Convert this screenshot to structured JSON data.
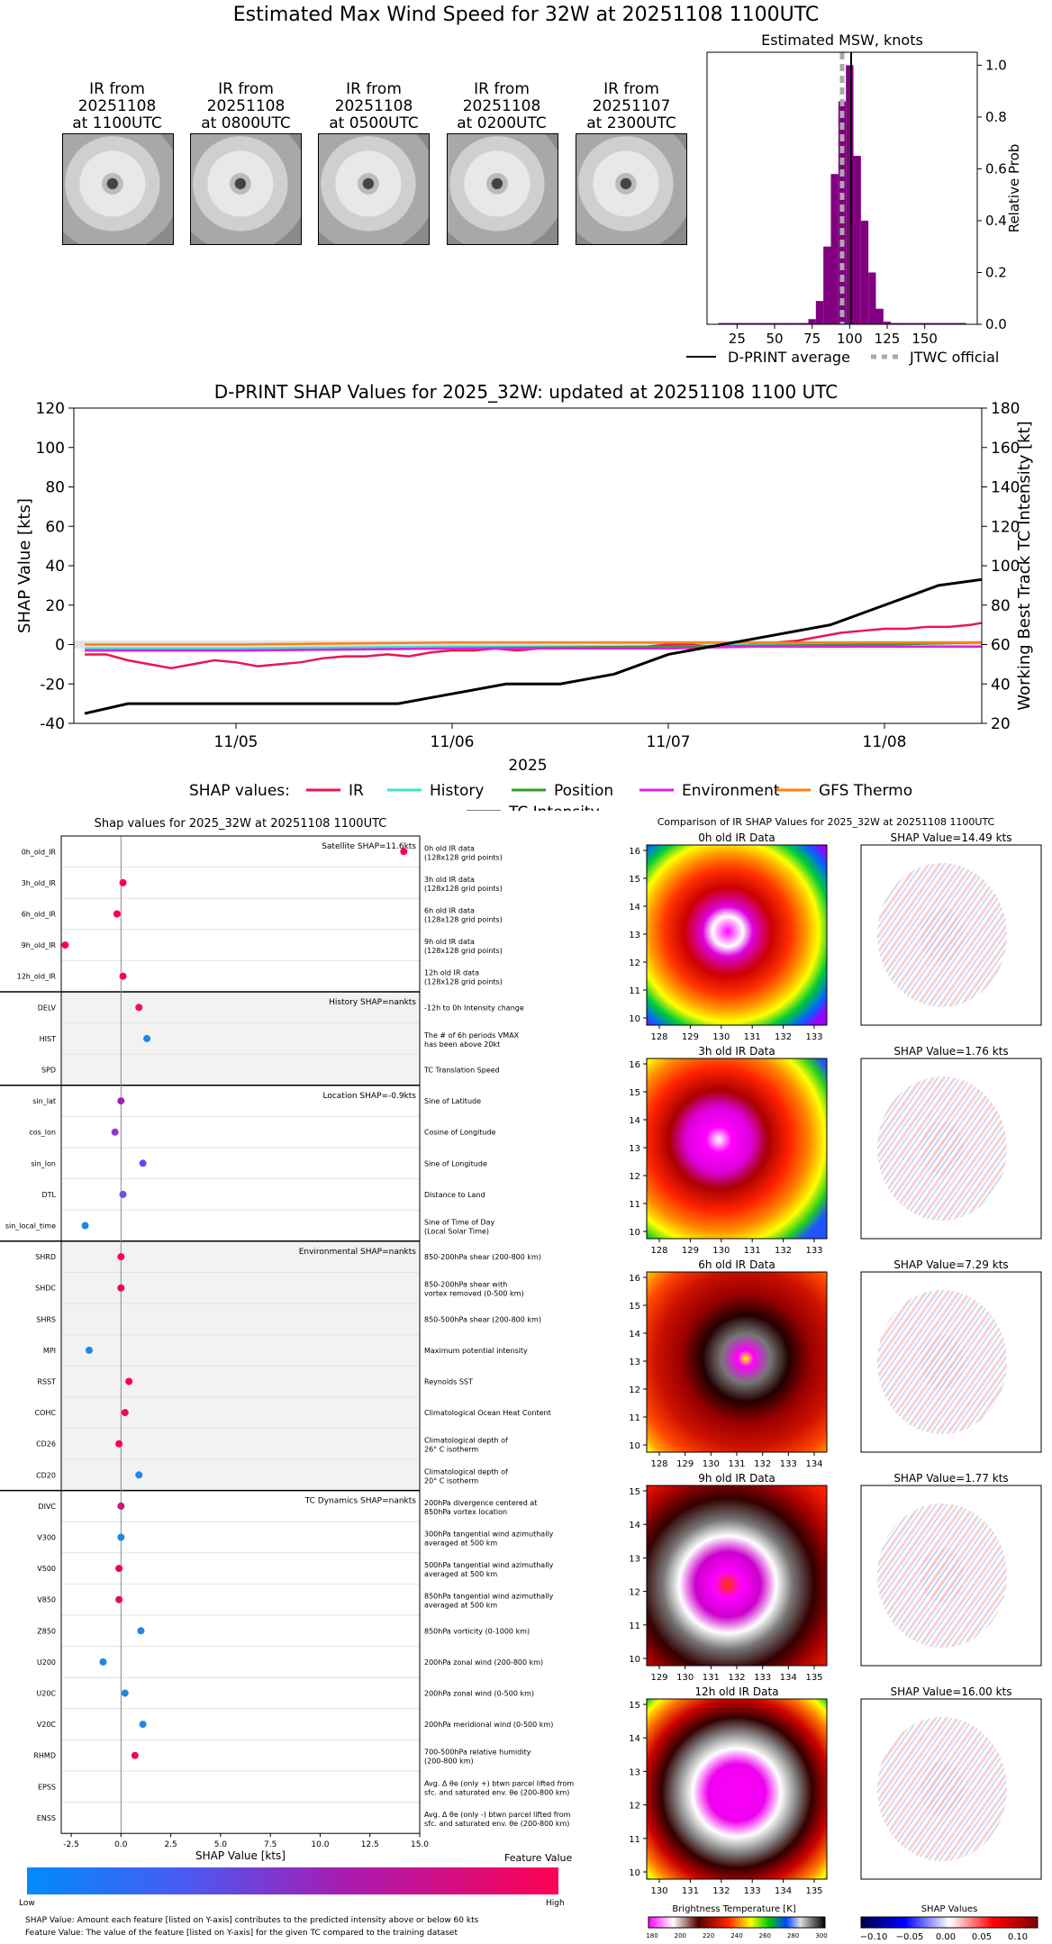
{
  "top": {
    "title": "Estimated Max Wind Speed for 32W at 20251108 1100UTC",
    "thumbnails": [
      {
        "line1": "IR from",
        "line2": "20251108",
        "line3": "at 1100UTC"
      },
      {
        "line1": "IR from",
        "line2": "20251108",
        "line3": "at 0800UTC"
      },
      {
        "line1": "IR from",
        "line2": "20251108",
        "line3": "at 0500UTC"
      },
      {
        "line1": "IR from",
        "line2": "20251108",
        "line3": "at 0200UTC"
      },
      {
        "line1": "IR from",
        "line2": "20251107",
        "line3": "at 2300UTC"
      }
    ],
    "legend_avg": "D-PRINT average",
    "legend_jtwc": "JTWC official",
    "colors": {
      "hist": "#800080",
      "avg": "#000000",
      "jtwc": "#aaaaaa"
    }
  },
  "shap_ts": {
    "title": "D-PRINT SHAP Values for 2025_32W: updated at 20251108 1100 UTC",
    "legend_title": "SHAP values:",
    "legend_items": [
      {
        "label": "IR",
        "color": "#e8174d"
      },
      {
        "label": "History",
        "color": "#40e0d0"
      },
      {
        "label": "Position",
        "color": "#2ca02c"
      },
      {
        "label": "Environment",
        "color": "#e020e0"
      },
      {
        "label": "GFS Thermo",
        "color": "#ff7f0e"
      },
      {
        "label": "TC Intensity",
        "color": "#000000"
      }
    ]
  },
  "features": {
    "title": "Shap values for 2025_32W at 20251108 1100UTC",
    "group_labels": [
      "Satellite SHAP=11.6kts",
      "History SHAP=nankts",
      "Location SHAP=-0.9kts",
      "Environmental SHAP=nankts",
      "TC Dynamics SHAP=nankts"
    ],
    "colorbar_title": "Feature Value",
    "colorbar_low": "Low",
    "colorbar_high": "High",
    "footnote1": "SHAP Value: Amount each feature [listed on Y-axis] contributes to the predicted intensity above or below 60 kts",
    "footnote2": "Feature Value: The value of the feature [listed on Y-axis] for the given TC compared to the training dataset"
  },
  "ir_compare": {
    "title": "Comparison of IR SHAP Values for 2025_32W at 20251108 1100UTC",
    "rows": [
      {
        "ir_title": "0h old IR Data",
        "shap_title": "SHAP Value=14.49 kts",
        "xticks": [
          "128",
          "129",
          "130",
          "131",
          "132",
          "133"
        ],
        "yticks": [
          "16",
          "15",
          "14",
          "13",
          "12",
          "11",
          "10"
        ]
      },
      {
        "ir_title": "3h old IR Data",
        "shap_title": "SHAP Value=1.76 kts",
        "xticks": [
          "128",
          "129",
          "130",
          "131",
          "132",
          "133"
        ],
        "yticks": [
          "16",
          "15",
          "14",
          "13",
          "12",
          "11",
          "10"
        ]
      },
      {
        "ir_title": "6h old IR Data",
        "shap_title": "SHAP Value=7.29 kts",
        "xticks": [
          "128",
          "129",
          "130",
          "131",
          "132",
          "133",
          "134"
        ],
        "yticks": [
          "16",
          "15",
          "14",
          "13",
          "12",
          "11",
          "10"
        ]
      },
      {
        "ir_title": "9h old IR Data",
        "shap_title": "SHAP Value=1.77 kts",
        "xticks": [
          "129",
          "130",
          "131",
          "132",
          "133",
          "134",
          "135"
        ],
        "yticks": [
          "15",
          "14",
          "13",
          "12",
          "11",
          "10"
        ]
      },
      {
        "ir_title": "12h old IR Data",
        "shap_title": "SHAP Value=16.00 kts",
        "xticks": [
          "130",
          "131",
          "132",
          "133",
          "134",
          "135"
        ],
        "yticks": [
          "15",
          "14",
          "13",
          "12",
          "11",
          "10"
        ]
      }
    ],
    "bt_title": "Brightness Temperature [K]",
    "bt_ticks": [
      "180",
      "200",
      "220",
      "240",
      "260",
      "280",
      "300"
    ],
    "sv_title": "SHAP Values",
    "sv_ticks": [
      "−0.10",
      "−0.05",
      "0.00",
      "0.05",
      "0.10"
    ]
  },
  "chart_data": [
    {
      "type": "bar",
      "title": "Estimated MSW, knots",
      "ylabel": "Relative Prob",
      "xlim": [
        5,
        185
      ],
      "ylim": [
        0,
        1.05
      ],
      "xticks": [
        25,
        50,
        75,
        100,
        125,
        150
      ],
      "yticks": [
        0.0,
        0.2,
        0.4,
        0.6,
        0.8,
        1.0
      ],
      "bin_width": 5,
      "bins": [
        15,
        20,
        25,
        30,
        35,
        40,
        45,
        50,
        55,
        60,
        65,
        70,
        75,
        80,
        85,
        90,
        95,
        100,
        105,
        110,
        115,
        120,
        125,
        130,
        135,
        140,
        145,
        150,
        155,
        160,
        165,
        170,
        175
      ],
      "values": [
        0.005,
        0.005,
        0.005,
        0.005,
        0.005,
        0.005,
        0.005,
        0.005,
        0.005,
        0.005,
        0.005,
        0.005,
        0.02,
        0.09,
        0.3,
        0.58,
        0.86,
        1.0,
        0.65,
        0.4,
        0.2,
        0.06,
        0.01,
        0.005,
        0.005,
        0.005,
        0.005,
        0.005,
        0.005,
        0.005,
        0.005,
        0.005,
        0.005
      ],
      "dprint_average": 101,
      "jtwc_official": 95
    },
    {
      "type": "line",
      "title": "D-PRINT SHAP Values for 2025_32W: updated at 20251108 1100 UTC",
      "xlabel": "2025",
      "ylabel": "SHAP Value [kts]",
      "y2label": "Working Best Track TC Intensity [kt]",
      "xlim": [
        4.25,
        8.45
      ],
      "ylim": [
        -40,
        120
      ],
      "y2lim": [
        20,
        180
      ],
      "xticks": [
        {
          "v": 5,
          "label": "11/05"
        },
        {
          "v": 6,
          "label": "11/06"
        },
        {
          "v": 7,
          "label": "11/07"
        },
        {
          "v": 8,
          "label": "11/08"
        }
      ],
      "yticks": [
        -40,
        -20,
        0,
        20,
        40,
        60,
        80,
        100,
        120
      ],
      "y2ticks": [
        20,
        40,
        60,
        80,
        100,
        120,
        140,
        160,
        180
      ],
      "series": [
        {
          "name": "IR",
          "axis": "left",
          "x": [
            4.3,
            4.4,
            4.5,
            4.6,
            4.7,
            4.8,
            4.9,
            5.0,
            5.1,
            5.2,
            5.3,
            5.4,
            5.5,
            5.6,
            5.7,
            5.8,
            5.9,
            6.0,
            6.1,
            6.2,
            6.3,
            6.4,
            6.5,
            6.6,
            6.7,
            6.8,
            6.9,
            7.0,
            7.1,
            7.2,
            7.3,
            7.4,
            7.5,
            7.6,
            7.7,
            7.8,
            7.9,
            8.0,
            8.1,
            8.2,
            8.3,
            8.4,
            8.45
          ],
          "y": [
            -5,
            -5,
            -8,
            -10,
            -12,
            -10,
            -8,
            -9,
            -11,
            -10,
            -9,
            -7,
            -6,
            -6,
            -5,
            -6,
            -4,
            -3,
            -3,
            -2,
            -3,
            -2,
            -2,
            -1,
            -1,
            -1,
            -1,
            0,
            0,
            -1,
            -1,
            0,
            1,
            2,
            4,
            6,
            7,
            8,
            8,
            9,
            9,
            10,
            11
          ]
        },
        {
          "name": "History",
          "axis": "left",
          "x": [
            4.3,
            5.0,
            6.0,
            7.0,
            8.0,
            8.45
          ],
          "y": [
            -2,
            -2,
            -1,
            -1,
            1,
            1
          ]
        },
        {
          "name": "Position",
          "axis": "left",
          "x": [
            4.3,
            5.0,
            6.0,
            7.0,
            8.0,
            8.45
          ],
          "y": [
            -3,
            -3,
            -2,
            -1,
            0,
            1
          ]
        },
        {
          "name": "Environment",
          "axis": "left",
          "x": [
            4.3,
            5.0,
            6.0,
            7.0,
            7.4,
            8.0,
            8.45
          ],
          "y": [
            -3,
            -3,
            -2,
            -2,
            -1,
            -1,
            -1
          ]
        },
        {
          "name": "GFS Thermo",
          "axis": "left",
          "x": [
            4.3,
            5.0,
            6.0,
            7.0,
            8.0,
            8.45
          ],
          "y": [
            0,
            0,
            1,
            1,
            1,
            1
          ]
        },
        {
          "name": "TC Intensity",
          "axis": "right",
          "x": [
            4.3,
            4.5,
            5.0,
            5.5,
            5.75,
            6.0,
            6.25,
            6.5,
            6.75,
            7.0,
            7.5,
            7.75,
            8.0,
            8.25,
            8.45
          ],
          "y": [
            25,
            30,
            30,
            30,
            30,
            35,
            40,
            40,
            45,
            55,
            65,
            70,
            80,
            90,
            93
          ]
        }
      ]
    },
    {
      "type": "scatter",
      "title": "Shap values for 2025_32W at 20251108 1100UTC",
      "xlabel": "SHAP Value [kts]",
      "xlim": [
        -3,
        15
      ],
      "xticks": [
        -2.5,
        0.0,
        2.5,
        5.0,
        7.5,
        10.0,
        12.5,
        15.0
      ],
      "points": [
        {
          "feature": "0h_old_IR",
          "desc1": "0h old IR data",
          "desc2": "(128x128 grid points)",
          "shap": 14.2,
          "color": "#ff0051"
        },
        {
          "feature": "3h_old_IR",
          "desc1": "3h old IR data",
          "desc2": "(128x128 grid points)",
          "shap": 0.1,
          "color": "#ff0051"
        },
        {
          "feature": "6h_old_IR",
          "desc1": "6h old IR data",
          "desc2": "(128x128 grid points)",
          "shap": -0.2,
          "color": "#ff0051"
        },
        {
          "feature": "9h_old_IR",
          "desc1": "9h old IR data",
          "desc2": "(128x128 grid points)",
          "shap": -2.8,
          "color": "#ff0051"
        },
        {
          "feature": "12h_old_IR",
          "desc1": "12h old IR data",
          "desc2": "(128x128 grid points)",
          "shap": 0.1,
          "color": "#ff0051"
        },
        {
          "feature": "DELV",
          "desc1": "-12h to 0h Intensity change",
          "desc2": "",
          "shap": 0.9,
          "color": "#f00a65"
        },
        {
          "feature": "HIST",
          "desc1": "The # of 6h periods VMAX",
          "desc2": "has been above 20kt",
          "shap": 1.3,
          "color": "#1e88e5"
        },
        {
          "feature": "SPD",
          "desc1": "TC Translation Speed",
          "desc2": "",
          "shap": null,
          "color": null
        },
        {
          "feature": "sin_lat",
          "desc1": "Sine of Latitude",
          "desc2": "",
          "shap": 0.0,
          "color": "#a020c0"
        },
        {
          "feature": "cos_lon",
          "desc1": "Cosine of Longitude",
          "desc2": "",
          "shap": -0.3,
          "color": "#9a2fd0"
        },
        {
          "feature": "sin_lon",
          "desc1": "Sine of Longitude",
          "desc2": "",
          "shap": 1.1,
          "color": "#5a4df0"
        },
        {
          "feature": "DTL",
          "desc1": "Distance to Land",
          "desc2": "",
          "shap": 0.1,
          "color": "#7050e0"
        },
        {
          "feature": "sin_local_time",
          "desc1": "Sine of Time of Day",
          "desc2": "(Local Solar Time)",
          "shap": -1.8,
          "color": "#1e88e5"
        },
        {
          "feature": "SHRD",
          "desc1": "850-200hPa shear (200-800 km)",
          "desc2": "",
          "shap": 0.0,
          "color": "#ff0051"
        },
        {
          "feature": "SHDC",
          "desc1": "850-200hPa shear with",
          "desc2": "vortex removed (0-500 km)",
          "shap": 0.0,
          "color": "#e8085d"
        },
        {
          "feature": "SHRS",
          "desc1": "850-500hPa shear (200-800 km)",
          "desc2": "",
          "shap": null,
          "color": null
        },
        {
          "feature": "MPI",
          "desc1": "Maximum potential intensity",
          "desc2": "",
          "shap": -1.6,
          "color": "#1e88e5"
        },
        {
          "feature": "RSST",
          "desc1": "Reynolds SST",
          "desc2": "",
          "shap": 0.4,
          "color": "#ff0051"
        },
        {
          "feature": "COHC",
          "desc1": "Climatological Ocean Heat Content",
          "desc2": "",
          "shap": 0.2,
          "color": "#e8085d"
        },
        {
          "feature": "CD26",
          "desc1": "Climatological depth of",
          "desc2": "26° C isotherm",
          "shap": -0.1,
          "color": "#ff0051"
        },
        {
          "feature": "CD20",
          "desc1": "Climatological depth of",
          "desc2": "20° C isotherm",
          "shap": 0.9,
          "color": "#1e88e5"
        },
        {
          "feature": "DIVC",
          "desc1": "200hPa divergence centered at",
          "desc2": "850hPa vortex location",
          "shap": 0.0,
          "color": "#c4187c"
        },
        {
          "feature": "V300",
          "desc1": "300hPa tangential wind azimuthally",
          "desc2": "averaged at 500 km",
          "shap": 0.0,
          "color": "#1e88e5"
        },
        {
          "feature": "V500",
          "desc1": "500hPa tangential wind azimuthally",
          "desc2": "averaged at 500 km",
          "shap": -0.1,
          "color": "#e8085d"
        },
        {
          "feature": "V850",
          "desc1": "850hPa tangential wind azimuthally",
          "desc2": "averaged at 500 km",
          "shap": -0.1,
          "color": "#e8085d"
        },
        {
          "feature": "Z850",
          "desc1": "850hPa vorticity (0-1000 km)",
          "desc2": "",
          "shap": 1.0,
          "color": "#1e88e5"
        },
        {
          "feature": "U200",
          "desc1": "200hPa zonal wind (200-800 km)",
          "desc2": "",
          "shap": -0.9,
          "color": "#1e88e5"
        },
        {
          "feature": "U20C",
          "desc1": "200hPa zonal wind (0-500 km)",
          "desc2": "",
          "shap": 0.2,
          "color": "#1e88e5"
        },
        {
          "feature": "V20C",
          "desc1": "200hPa meridional wind (0-500 km)",
          "desc2": "",
          "shap": 1.1,
          "color": "#1e88e5"
        },
        {
          "feature": "RHMD",
          "desc1": "700-500hPa relative humidity",
          "desc2": "(200-800 km)",
          "shap": 0.7,
          "color": "#e8085d"
        },
        {
          "feature": "EPSS",
          "desc1": "Avg. Δ θe (only +) btwn parcel lifted from",
          "desc2": "sfc. and saturated env. θe (200-800 km)",
          "shap": null,
          "color": null
        },
        {
          "feature": "ENSS",
          "desc1": "Avg. Δ θe (only -) btwn parcel lifted from",
          "desc2": "sfc. and saturated env. θe (200-800 km)",
          "shap": null,
          "color": null
        }
      ]
    }
  ]
}
